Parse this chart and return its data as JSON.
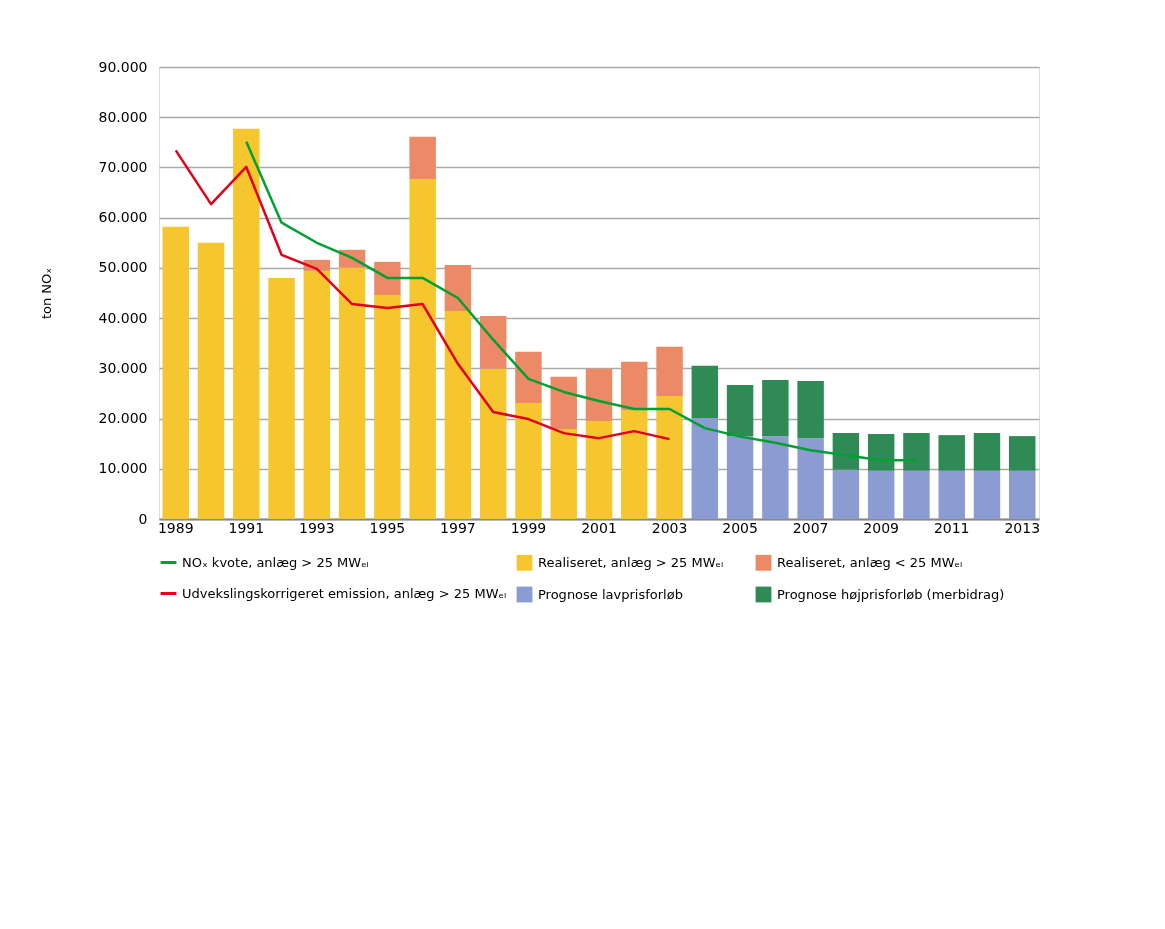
{
  "chart_data": {
    "type": "bar",
    "stacked": true,
    "ylabel": "ton NOₓ",
    "categories": [
      "1989",
      null,
      "1991",
      null,
      "1993",
      null,
      "1995",
      null,
      "1997",
      null,
      "1999",
      null,
      "2001",
      null,
      "2003",
      null,
      "2005",
      null,
      "2007",
      null,
      "2009",
      null,
      "2011",
      null,
      "2013"
    ],
    "series": [
      {
        "name": "Realiseret, anlæg > 25 MWₑₗ",
        "color": "#f5c62e",
        "values": [
          58200,
          55000,
          77700,
          48000,
          49400,
          50000,
          44600,
          67700,
          41400,
          29900,
          23100,
          17900,
          19500,
          21700,
          24500,
          null,
          null,
          null,
          null,
          null,
          null,
          null,
          null,
          null,
          null
        ]
      },
      {
        "name": "Realiseret, anlæg < 25 MWₑₗ",
        "color": "#ec8a68",
        "values": [
          null,
          null,
          null,
          null,
          2200,
          3600,
          6600,
          8400,
          9200,
          10500,
          10200,
          10400,
          10400,
          9600,
          9800,
          null,
          null,
          null,
          null,
          null,
          null,
          null,
          null,
          null,
          null
        ]
      },
      {
        "name": "Prognose lavprisforløb",
        "color": "#8b9cd2",
        "values": [
          null,
          null,
          null,
          null,
          null,
          null,
          null,
          null,
          null,
          null,
          null,
          null,
          null,
          null,
          null,
          20100,
          16500,
          16500,
          16100,
          9800,
          9600,
          9600,
          9600,
          9600,
          9600
        ]
      },
      {
        "name": "Prognose højprisforløb (merbidrag)",
        "color": "#2f8a55",
        "values": [
          null,
          null,
          null,
          null,
          null,
          null,
          null,
          null,
          null,
          null,
          null,
          null,
          null,
          null,
          null,
          10400,
          10200,
          11200,
          11400,
          7300,
          7300,
          7500,
          7100,
          7500,
          6900
        ]
      },
      {
        "name": "NOₓ kvote, anlæg > 25 MWₑₗ",
        "type": "line",
        "color": "#00a032",
        "values": [
          null,
          null,
          75100,
          59000,
          55000,
          52000,
          48000,
          48000,
          44000,
          35700,
          27900,
          25300,
          23500,
          21900,
          21900,
          18100,
          16400,
          15200,
          13700,
          12700,
          11700,
          11700,
          null,
          null,
          null
        ]
      },
      {
        "name": "Udvekslingskorrigeret emission, anlæg > 25 MWₑₗ",
        "type": "line",
        "color": "#e2001a",
        "values": [
          73400,
          62700,
          70100,
          52600,
          49800,
          42800,
          42000,
          42800,
          30900,
          21300,
          19900,
          17100,
          16100,
          17500,
          15900,
          null,
          null,
          null,
          null,
          null,
          null,
          null,
          null,
          null,
          null
        ]
      }
    ],
    "ylim": [
      0,
      90000
    ],
    "yticks": [
      0,
      {
        "value": 10000,
        "label": "10.000"
      },
      {
        "value": 20000,
        "label": "20.000"
      },
      {
        "value": 30000,
        "label": "30.000"
      },
      {
        "value": 40000,
        "label": "40.000"
      },
      {
        "value": 50000,
        "label": "50.000"
      },
      {
        "value": 60000,
        "label": "60.000"
      },
      {
        "value": 70000,
        "label": "70.000"
      },
      {
        "value": 80000,
        "label": "80.000"
      },
      {
        "value": 90000,
        "label": "90.000"
      }
    ],
    "grid": "y",
    "legend": "bottom"
  }
}
